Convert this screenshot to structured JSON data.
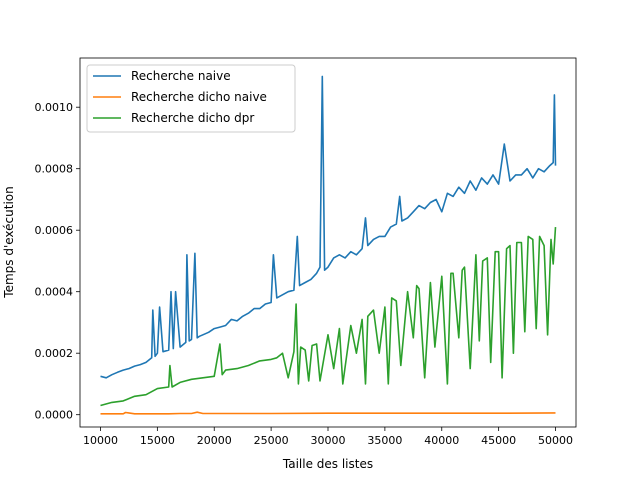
{
  "chart_data": {
    "type": "line",
    "title": "",
    "xlabel": "Taille des listes",
    "ylabel": "Temps d'exécution",
    "xlim": [
      8200,
      51800
    ],
    "ylim": [
      -4e-05,
      0.00116
    ],
    "xticks": [
      10000,
      15000,
      20000,
      25000,
      30000,
      35000,
      40000,
      45000,
      50000
    ],
    "xtick_labels": [
      "10000",
      "15000",
      "20000",
      "25000",
      "30000",
      "35000",
      "40000",
      "45000",
      "50000"
    ],
    "yticks": [
      0.0,
      0.0002,
      0.0004,
      0.0006,
      0.0008,
      0.001
    ],
    "ytick_labels": [
      "0.0000",
      "0.0002",
      "0.0004",
      "0.0006",
      "0.0008",
      "0.0010"
    ],
    "grid": false,
    "legend_position": "top-left",
    "series": [
      {
        "name": "Recherche naive",
        "color": "#1f77b4",
        "x": [
          10000,
          10500,
          11000,
          11500,
          12000,
          12500,
          13000,
          13500,
          14000,
          14500,
          14600,
          14800,
          15000,
          15200,
          15500,
          16000,
          16200,
          16400,
          16600,
          17000,
          17500,
          17600,
          17800,
          18000,
          18300,
          18500,
          18700,
          19000,
          19500,
          20000,
          20500,
          21000,
          21500,
          22000,
          22500,
          23000,
          23500,
          24000,
          24500,
          25000,
          25200,
          25500,
          26000,
          26500,
          27000,
          27300,
          27500,
          28000,
          28500,
          29000,
          29300,
          29500,
          29700,
          30000,
          30500,
          31000,
          31500,
          32000,
          32500,
          33000,
          33300,
          33500,
          34000,
          34500,
          35000,
          35500,
          36000,
          36300,
          36500,
          37000,
          37500,
          38000,
          38500,
          39000,
          39500,
          40000,
          40500,
          41000,
          41500,
          42000,
          42500,
          43000,
          43500,
          44000,
          44500,
          45000,
          45500,
          46000,
          46500,
          47000,
          47500,
          48000,
          48500,
          49000,
          49500,
          49800,
          49900,
          50000
        ],
        "values": [
          0.000125,
          0.00012,
          0.00013,
          0.000138,
          0.000145,
          0.00015,
          0.000158,
          0.000163,
          0.00017,
          0.000185,
          0.00034,
          0.00019,
          0.0002,
          0.00035,
          0.000205,
          0.00021,
          0.0004,
          0.000215,
          0.0004,
          0.00022,
          0.000235,
          0.00052,
          0.00024,
          0.000245,
          0.000525,
          0.00025,
          0.000255,
          0.00026,
          0.000268,
          0.00028,
          0.000285,
          0.00029,
          0.00031,
          0.000305,
          0.00032,
          0.00033,
          0.000345,
          0.000345,
          0.00036,
          0.000365,
          0.00052,
          0.00038,
          0.00039,
          0.0004,
          0.000405,
          0.00058,
          0.00042,
          0.00043,
          0.00044,
          0.00046,
          0.00048,
          0.0011,
          0.00047,
          0.00048,
          0.00051,
          0.00052,
          0.00051,
          0.00053,
          0.00052,
          0.00054,
          0.00064,
          0.00055,
          0.00057,
          0.00058,
          0.00058,
          0.00061,
          0.00062,
          0.00071,
          0.00063,
          0.00064,
          0.00066,
          0.00068,
          0.00067,
          0.00069,
          0.0007,
          0.00066,
          0.00072,
          0.00071,
          0.00074,
          0.00072,
          0.00076,
          0.00073,
          0.00077,
          0.00075,
          0.00078,
          0.00075,
          0.00088,
          0.00076,
          0.00078,
          0.00078,
          0.0008,
          0.00077,
          0.0008,
          0.00079,
          0.00081,
          0.00082,
          0.00104,
          0.00081
        ]
      },
      {
        "name": "Recherche dicho naive",
        "color": "#ff7f0e",
        "x": [
          10000,
          11000,
          12000,
          12200,
          13000,
          14000,
          15000,
          16000,
          17000,
          18000,
          18500,
          19000,
          20000,
          25000,
          30000,
          35000,
          40000,
          45000,
          50000
        ],
        "values": [
          3e-06,
          3e-06,
          3e-06,
          7e-06,
          3e-06,
          3e-06,
          3e-06,
          3e-06,
          4e-06,
          4e-06,
          8e-06,
          4e-06,
          4e-06,
          4e-06,
          5e-06,
          5e-06,
          5e-06,
          5e-06,
          6e-06
        ]
      },
      {
        "name": "Recherche dicho dpr",
        "color": "#2ca02c",
        "x": [
          10000,
          11000,
          12000,
          13000,
          14000,
          15000,
          16000,
          16100,
          16300,
          17000,
          18000,
          19000,
          20000,
          20500,
          20700,
          21000,
          22000,
          23000,
          24000,
          25000,
          25500,
          26000,
          26500,
          27000,
          27200,
          27400,
          27600,
          28000,
          28300,
          28600,
          29000,
          29300,
          30000,
          30500,
          31000,
          31300,
          32000,
          32500,
          33000,
          33300,
          33500,
          34000,
          34500,
          35000,
          35300,
          35600,
          36000,
          36400,
          37000,
          37500,
          37800,
          38000,
          38500,
          39000,
          39400,
          40000,
          40500,
          40800,
          41000,
          41500,
          41800,
          42000,
          42500,
          43000,
          43300,
          43600,
          44000,
          44300,
          44700,
          45000,
          45300,
          45700,
          46000,
          46300,
          46600,
          47000,
          47300,
          47600,
          48000,
          48300,
          48600,
          49000,
          49300,
          49600,
          49800,
          50000
        ],
        "values": [
          3e-05,
          4e-05,
          4.5e-05,
          6e-05,
          6.5e-05,
          8.5e-05,
          9e-05,
          0.00016,
          9e-05,
          0.000105,
          0.000115,
          0.00012,
          0.000125,
          0.00023,
          0.00013,
          0.000145,
          0.00015,
          0.00016,
          0.000175,
          0.00018,
          0.000185,
          0.0002,
          0.00012,
          0.000205,
          0.00036,
          0.0001,
          0.00022,
          0.00021,
          0.00011,
          0.000225,
          0.00023,
          0.00011,
          0.00026,
          0.00015,
          0.00028,
          0.0001,
          0.00029,
          0.0002,
          0.00031,
          0.0001,
          0.00032,
          0.00034,
          0.0002,
          0.00035,
          0.0001,
          0.00038,
          0.00037,
          0.00016,
          0.0004,
          0.00025,
          0.00042,
          0.00041,
          0.00012,
          0.00043,
          0.00022,
          0.00045,
          0.0001,
          0.00046,
          0.00046,
          0.00025,
          0.00047,
          0.00048,
          0.00015,
          0.00052,
          0.00024,
          0.0005,
          0.00051,
          0.00017,
          0.00053,
          0.00053,
          0.00012,
          0.00054,
          0.00055,
          0.0002,
          0.00056,
          0.00056,
          0.00027,
          0.00058,
          0.00057,
          0.00028,
          0.00058,
          0.00055,
          0.00026,
          0.00057,
          0.00049,
          0.00061
        ]
      }
    ]
  }
}
